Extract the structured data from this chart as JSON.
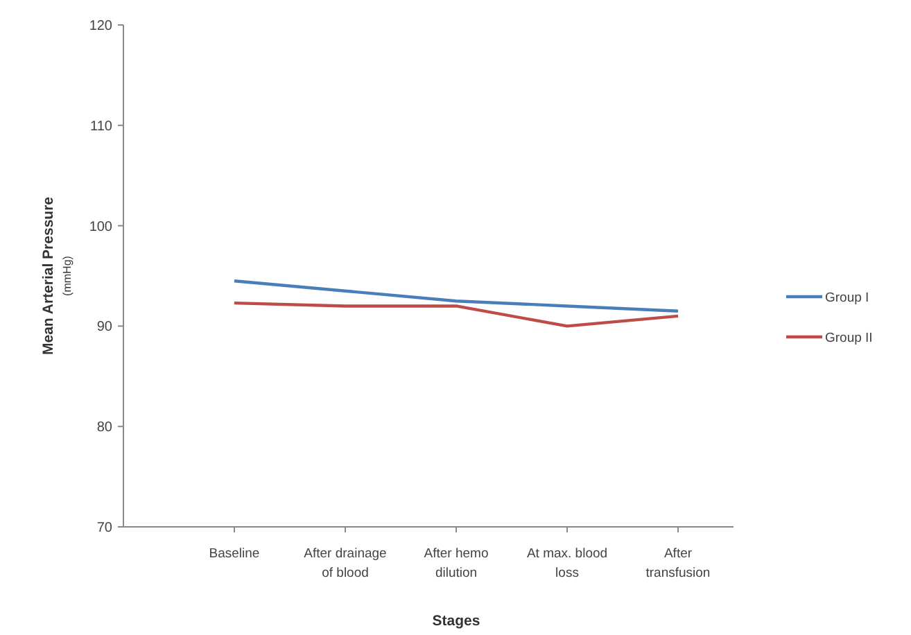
{
  "chart_data": {
    "type": "line",
    "xlabel": "Stages",
    "ylabel": "Mean Arterial Pressure\n(mmHg)",
    "categories": [
      "Baseline",
      "After drainage of blood",
      "After hemo dilution",
      "At max. blood loss",
      "After transfusion"
    ],
    "series": [
      {
        "name": "Group I",
        "color": "#4a7ebb",
        "values": [
          94.5,
          93.5,
          92.5,
          92,
          91.5
        ]
      },
      {
        "name": "Group II",
        "color": "#be4b48",
        "values": [
          92.3,
          92,
          92,
          90,
          91
        ]
      }
    ],
    "ylim": [
      70,
      120
    ],
    "yticks": [
      70,
      80,
      90,
      100,
      110,
      120
    ],
    "legend": "right",
    "grid": false,
    "marker": "none",
    "line_style": "solid"
  }
}
